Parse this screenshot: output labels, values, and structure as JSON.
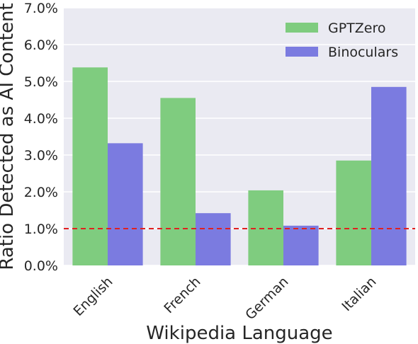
{
  "chart_data": {
    "type": "bar",
    "xlabel": "Wikipedia Language",
    "ylabel": "Ratio Detected as AI Content",
    "categories": [
      "English",
      "French",
      "German",
      "Italian"
    ],
    "series": [
      {
        "name": "GPTZero",
        "values": [
          5.38,
          4.55,
          2.04,
          2.85
        ],
        "color": "#7fcc7f"
      },
      {
        "name": "Binoculars",
        "values": [
          3.32,
          1.42,
          1.08,
          4.85
        ],
        "color": "#7b7be0"
      }
    ],
    "ylim": [
      0,
      7
    ],
    "yticks": [
      "0.0%",
      "1.0%",
      "2.0%",
      "3.0%",
      "4.0%",
      "5.0%",
      "6.0%",
      "7.0%"
    ],
    "reference_line": {
      "value": 1.0,
      "color": "#e02020",
      "style": "dashed"
    },
    "grid": true,
    "legend_position": "top-right",
    "background": "#eaeaf2"
  }
}
